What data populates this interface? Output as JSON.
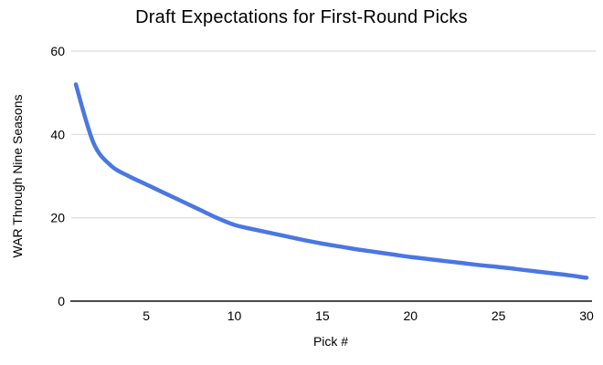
{
  "chart_data": {
    "type": "line",
    "title": "Draft Expectations for First-Round Picks",
    "xlabel": "Pick #",
    "ylabel": "WAR Through Nine Seasons",
    "x": [
      1,
      2,
      3,
      4,
      5,
      6,
      7,
      8,
      9,
      10,
      11,
      12,
      13,
      14,
      15,
      16,
      17,
      18,
      19,
      20,
      21,
      22,
      23,
      24,
      25,
      26,
      27,
      28,
      29,
      30
    ],
    "values": [
      52,
      38,
      32.5,
      30,
      28,
      26,
      24,
      22,
      20,
      18.3,
      17.3,
      16.4,
      15.5,
      14.6,
      13.8,
      13.1,
      12.4,
      11.8,
      11.2,
      10.6,
      10.1,
      9.6,
      9.1,
      8.6,
      8.2,
      7.7,
      7.2,
      6.7,
      6.2,
      5.6
    ],
    "xticks": [
      5,
      10,
      15,
      20,
      25,
      30
    ],
    "yticks": [
      0,
      20,
      40,
      60
    ],
    "xlim": [
      1,
      30
    ],
    "ylim": [
      0,
      60
    ],
    "grid": "horizontal-only",
    "legend": "none",
    "line_color": "#4a77e2",
    "grid_color": "#d9d9d9",
    "axis_color": "#111111",
    "text_color": "#000000",
    "background_color": "#ffffff"
  }
}
